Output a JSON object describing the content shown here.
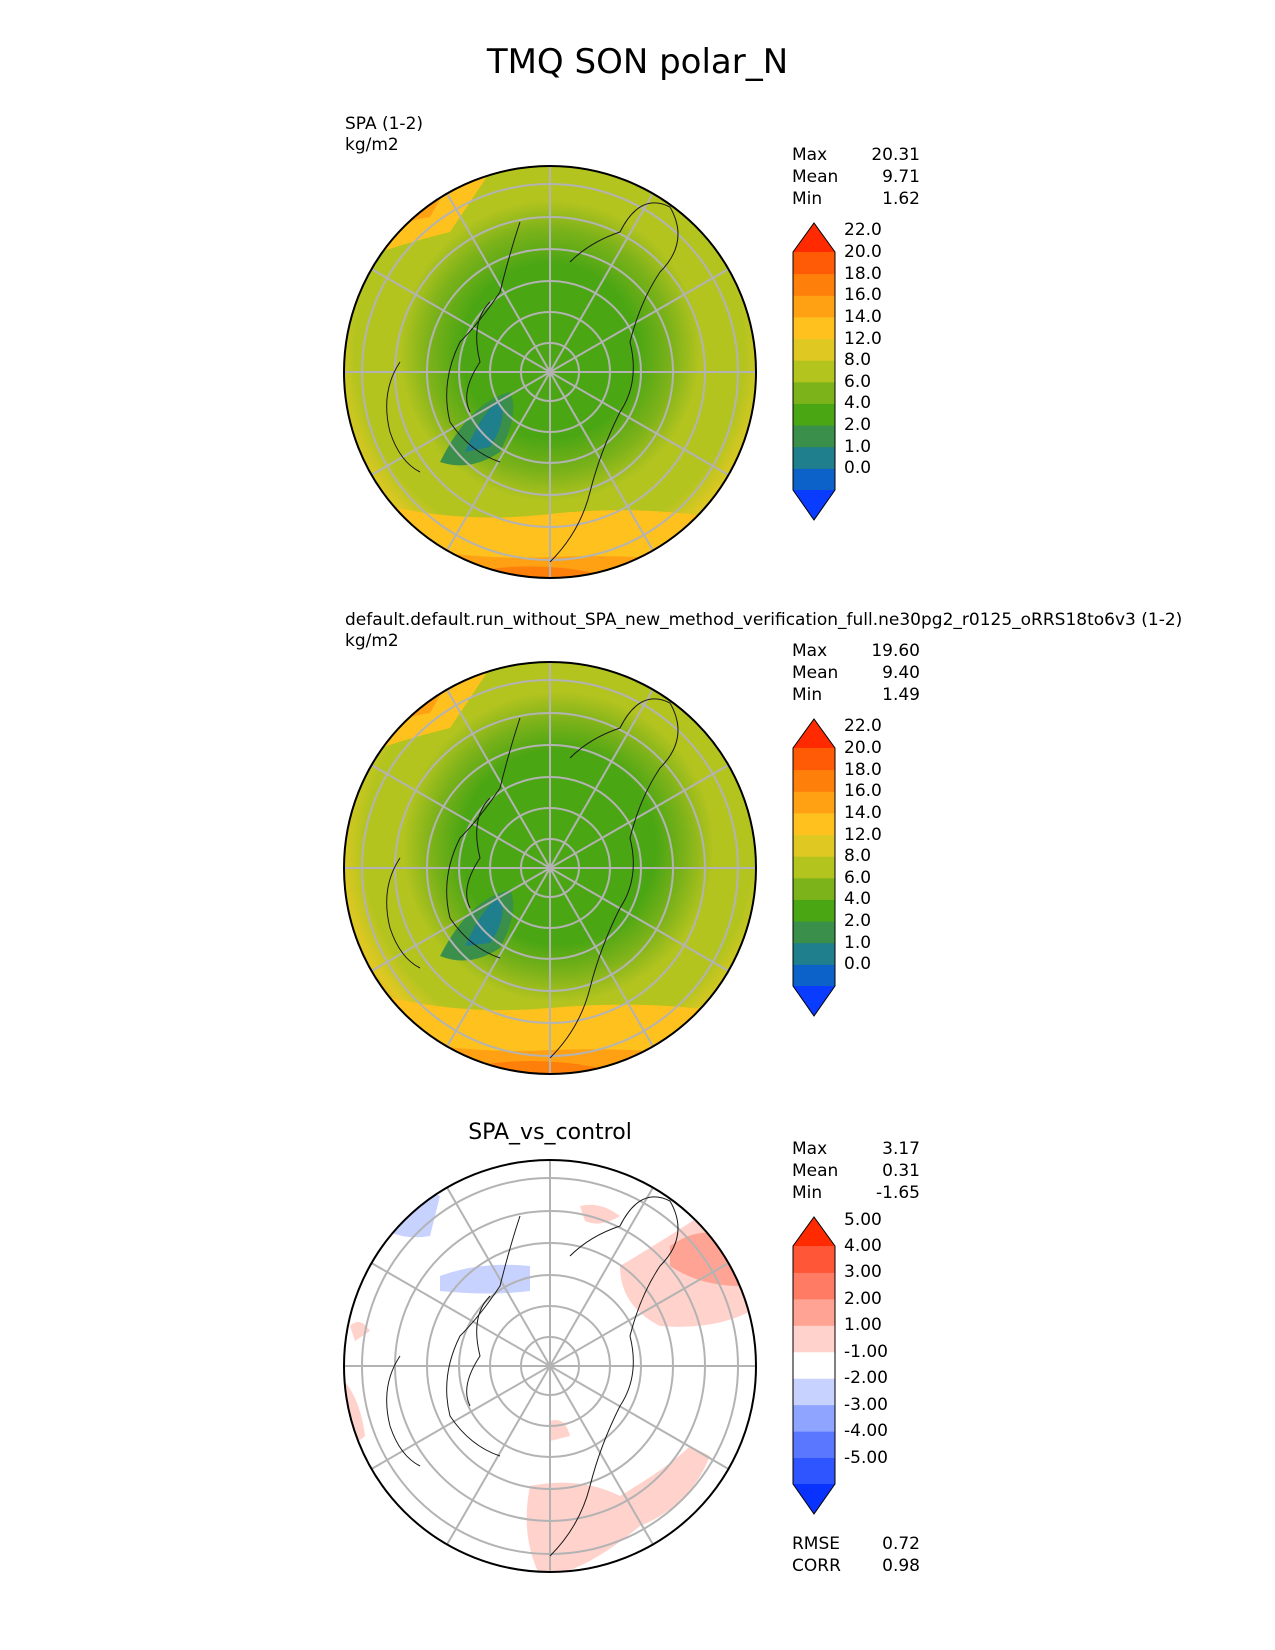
{
  "title": "TMQ SON polar_N",
  "panels": [
    {
      "id": "test",
      "title_lines": [
        "SPA (1-2)",
        "kg/m2"
      ],
      "stats": [
        {
          "label": "Max",
          "value": "20.31"
        },
        {
          "label": "Mean",
          "value": "9.71"
        },
        {
          "label": "Min",
          "value": "1.62"
        }
      ],
      "colorbar": {
        "levels": [
          "0.0",
          "1.0",
          "2.0",
          "4.0",
          "6.0",
          "8.0",
          "12.0",
          "14.0",
          "16.0",
          "18.0",
          "20.0",
          "22.0"
        ],
        "colors": [
          "#0a3cff",
          "#0d62c9",
          "#1f7f8c",
          "#3a8f4a",
          "#4ba614",
          "#7cb21a",
          "#b4c41f",
          "#e0c823",
          "#ffc11e",
          "#ffa113",
          "#ff7f0b",
          "#ff5a05",
          "#ff2a00"
        ],
        "extend": "both"
      }
    },
    {
      "id": "reference",
      "title_lines": [
        "default.default.run_without_SPA_new_method_verification_full.ne30pg2_r0125_oRRS18to6v3 (1-2)",
        "kg/m2"
      ],
      "stats": [
        {
          "label": "Max",
          "value": "19.60"
        },
        {
          "label": "Mean",
          "value": "9.40"
        },
        {
          "label": "Min",
          "value": "1.49"
        }
      ],
      "colorbar": {
        "levels": [
          "0.0",
          "1.0",
          "2.0",
          "4.0",
          "6.0",
          "8.0",
          "12.0",
          "14.0",
          "16.0",
          "18.0",
          "20.0",
          "22.0"
        ],
        "colors": [
          "#0a3cff",
          "#0d62c9",
          "#1f7f8c",
          "#3a8f4a",
          "#4ba614",
          "#7cb21a",
          "#b4c41f",
          "#e0c823",
          "#ffc11e",
          "#ffa113",
          "#ff7f0b",
          "#ff5a05",
          "#ff2a00"
        ],
        "extend": "both"
      }
    },
    {
      "id": "difference",
      "title": "SPA_vs_control",
      "stats": [
        {
          "label": "Max",
          "value": "3.17"
        },
        {
          "label": "Mean",
          "value": "0.31"
        },
        {
          "label": "Min",
          "value": "-1.65"
        }
      ],
      "metrics": [
        {
          "label": "RMSE",
          "value": "0.72"
        },
        {
          "label": "CORR",
          "value": "0.98"
        }
      ],
      "colorbar": {
        "levels": [
          "-5.00",
          "-4.00",
          "-3.00",
          "-2.00",
          "-1.00",
          "1.00",
          "2.00",
          "3.00",
          "4.00",
          "5.00"
        ],
        "colors": [
          "#0a32ff",
          "#2e55ff",
          "#5a78ff",
          "#8fa4ff",
          "#c8d2ff",
          "#ffffff",
          "#ffd2cc",
          "#ffa494",
          "#ff7b64",
          "#ff5638",
          "#ff2a00"
        ],
        "extend": "both"
      }
    }
  ]
}
